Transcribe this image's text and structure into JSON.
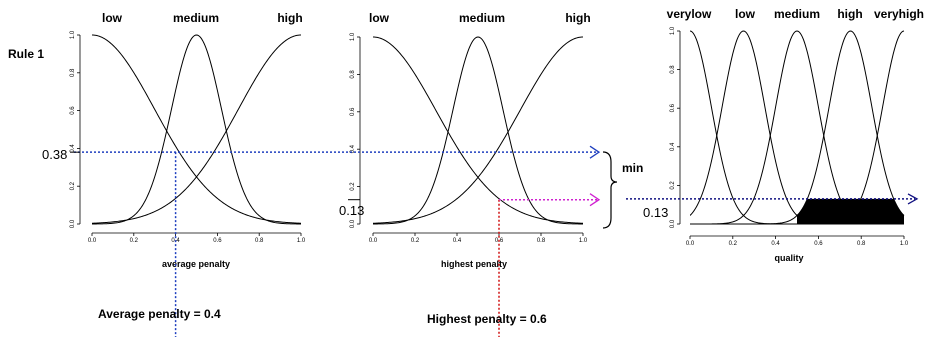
{
  "rule_label": "Rule 1",
  "min_label": "min",
  "panels": [
    {
      "xlabel": "average penalty",
      "terms": [
        "low",
        "medium",
        "high"
      ],
      "x_ticks": [
        "0.0",
        "0.2",
        "0.4",
        "0.6",
        "0.8",
        "1.0"
      ],
      "y_ticks": [
        "0.0",
        "0.2",
        "0.4",
        "0.6",
        "0.8",
        "1.0"
      ],
      "membership_readout": "0.38",
      "input_note": "Average penalty = 0.4"
    },
    {
      "xlabel": "highest penalty",
      "terms": [
        "low",
        "medium",
        "high"
      ],
      "x_ticks": [
        "0.0",
        "0.2",
        "0.4",
        "0.6",
        "0.8",
        "1.0"
      ],
      "y_ticks": [
        "0.0",
        "0.2",
        "0.4",
        "0.6",
        "0.8",
        "1.0"
      ],
      "membership_readout": "0.13",
      "input_note": "Highest penalty = 0.6"
    },
    {
      "xlabel": "quality",
      "terms": [
        "verylow",
        "low",
        "medium",
        "high",
        "veryhigh"
      ],
      "x_ticks": [
        "0.0",
        "0.2",
        "0.4",
        "0.6",
        "0.8",
        "1.0"
      ],
      "y_ticks": [
        "0.0",
        "0.2",
        "0.4",
        "0.6",
        "0.8",
        "1.0"
      ],
      "membership_readout": "0.13"
    }
  ],
  "chart_data": [
    {
      "type": "line",
      "xlabel": "average penalty",
      "xlim": [
        0,
        1
      ],
      "ylim": [
        0,
        1
      ],
      "series": [
        {
          "name": "low",
          "shape": "gaussian",
          "center": 0.0,
          "sigma": 0.3
        },
        {
          "name": "medium",
          "shape": "gaussian",
          "center": 0.5,
          "sigma": 0.12
        },
        {
          "name": "high",
          "shape": "gaussian",
          "center": 1.0,
          "sigma": 0.3
        }
      ],
      "input": 0.4,
      "membership": 0.38
    },
    {
      "type": "line",
      "xlabel": "highest penalty",
      "xlim": [
        0,
        1
      ],
      "ylim": [
        0,
        1
      ],
      "series": [
        {
          "name": "low",
          "shape": "gaussian",
          "center": 0.0,
          "sigma": 0.3
        },
        {
          "name": "medium",
          "shape": "gaussian",
          "center": 0.5,
          "sigma": 0.12
        },
        {
          "name": "high",
          "shape": "gaussian",
          "center": 1.0,
          "sigma": 0.3
        }
      ],
      "input": 0.6,
      "membership": 0.13
    },
    {
      "type": "area",
      "xlabel": "quality",
      "xlim": [
        0,
        1
      ],
      "ylim": [
        0,
        1
      ],
      "series": [
        {
          "name": "verylow",
          "shape": "gaussian",
          "center": 0.0,
          "sigma": 0.1
        },
        {
          "name": "low",
          "shape": "gaussian",
          "center": 0.25,
          "sigma": 0.1
        },
        {
          "name": "medium",
          "shape": "gaussian",
          "center": 0.5,
          "sigma": 0.1
        },
        {
          "name": "high",
          "shape": "gaussian",
          "center": 0.75,
          "sigma": 0.1
        },
        {
          "name": "veryhigh",
          "shape": "gaussian",
          "center": 1.0,
          "sigma": 0.1
        }
      ],
      "clipped_term": "high",
      "clip_level": 0.13
    }
  ],
  "colors": {
    "average_guide": "#1f3fbf",
    "highest_guide": "#d01010",
    "highest_arrow": "#d020d0",
    "output_arrow": "#101080",
    "curve": "#000000"
  }
}
